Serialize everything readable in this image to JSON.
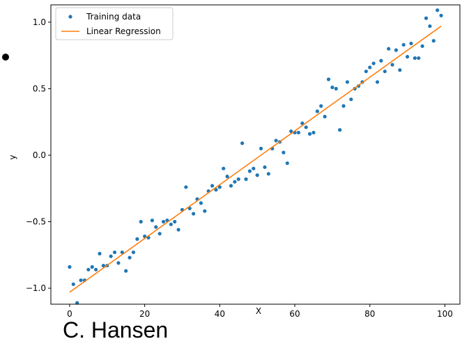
{
  "caption": {
    "author": "C. Hansen"
  },
  "chart_data": {
    "type": "scatter",
    "xlabel": "X",
    "ylabel": "y",
    "xlim": [
      -5,
      104
    ],
    "ylim": [
      -1.12,
      1.13
    ],
    "xticks": [
      0,
      20,
      40,
      60,
      80,
      100
    ],
    "yticks": [
      -1.0,
      -0.5,
      0.0,
      0.5,
      1.0
    ],
    "ytick_labels": [
      "−1.0",
      "−0.5",
      "0.0",
      "0.5",
      "1.0"
    ],
    "grid": false,
    "legend": {
      "placement": "top-left",
      "entries": [
        "Training data",
        "Linear Regression"
      ]
    },
    "colors": {
      "points": "#1f77b4",
      "line": "#ff7f0e"
    },
    "series": [
      {
        "name": "Training data",
        "kind": "scatter",
        "x": [
          0,
          1,
          2,
          3,
          4,
          5,
          6,
          7,
          8,
          9,
          10,
          11,
          12,
          13,
          14,
          15,
          16,
          17,
          18,
          19,
          20,
          21,
          22,
          23,
          24,
          25,
          26,
          27,
          28,
          29,
          30,
          31,
          32,
          33,
          34,
          35,
          36,
          37,
          38,
          39,
          40,
          41,
          42,
          43,
          44,
          45,
          46,
          47,
          48,
          49,
          50,
          51,
          52,
          53,
          54,
          55,
          56,
          57,
          58,
          59,
          60,
          61,
          62,
          63,
          64,
          65,
          66,
          67,
          68,
          69,
          70,
          71,
          72,
          73,
          74,
          75,
          76,
          77,
          78,
          79,
          80,
          81,
          82,
          83,
          84,
          85,
          86,
          87,
          88,
          89,
          90,
          91,
          92,
          93,
          94,
          95,
          96,
          97,
          98,
          99
        ],
        "y": [
          -0.84,
          -0.97,
          -1.11,
          -0.94,
          -0.94,
          -0.86,
          -0.84,
          -0.86,
          -0.74,
          -0.83,
          -0.83,
          -0.76,
          -0.73,
          -0.81,
          -0.73,
          -0.87,
          -0.77,
          -0.73,
          -0.63,
          -0.5,
          -0.61,
          -0.62,
          -0.49,
          -0.54,
          -0.59,
          -0.5,
          -0.49,
          -0.52,
          -0.5,
          -0.56,
          -0.41,
          -0.24,
          -0.4,
          -0.44,
          -0.33,
          -0.36,
          -0.42,
          -0.27,
          -0.23,
          -0.26,
          -0.24,
          -0.1,
          -0.16,
          -0.23,
          -0.2,
          -0.18,
          0.09,
          -0.18,
          -0.12,
          -0.1,
          -0.15,
          0.05,
          -0.09,
          -0.14,
          0.05,
          0.11,
          0.1,
          0.02,
          -0.06,
          0.18,
          0.17,
          0.17,
          0.24,
          0.21,
          0.16,
          0.17,
          0.33,
          0.37,
          0.29,
          0.57,
          0.51,
          0.5,
          0.19,
          0.37,
          0.55,
          0.42,
          0.5,
          0.52,
          0.55,
          0.63,
          0.66,
          0.69,
          0.55,
          0.71,
          0.63,
          0.8,
          0.68,
          0.79,
          0.64,
          0.83,
          0.74,
          0.84,
          0.73,
          0.73,
          0.82,
          1.03,
          0.97,
          0.86,
          1.09,
          1.05
        ]
      },
      {
        "name": "Linear Regression",
        "kind": "line",
        "x": [
          0,
          99
        ],
        "y": [
          -1.03,
          0.97
        ]
      }
    ]
  }
}
